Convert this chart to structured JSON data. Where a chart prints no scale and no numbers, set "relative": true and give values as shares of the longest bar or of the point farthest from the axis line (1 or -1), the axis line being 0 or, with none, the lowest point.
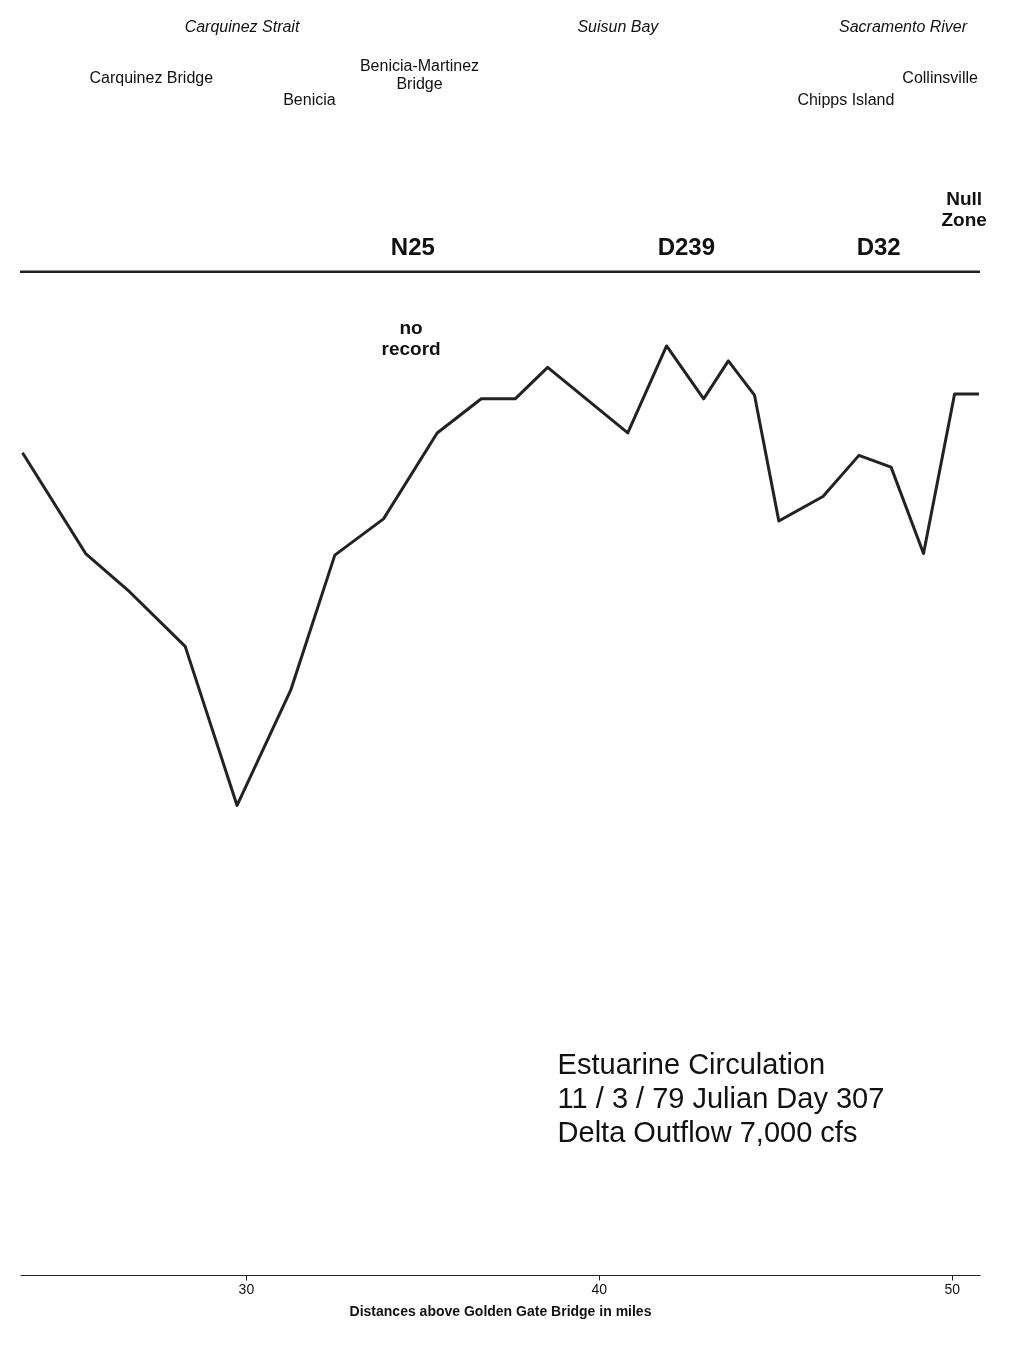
{
  "chart_data": {
    "type": "line",
    "relative": true,
    "title": "Estuarine Circulation",
    "subtitle": "11 / 3 / 79 Julian Day 307\nDelta Outflow 7,000 cfs",
    "xlabel": "Distances above Golden Gate Bridge in miles",
    "xlim": [
      23.6,
      50.8
    ],
    "xticks": [
      30,
      40,
      50
    ],
    "x": [
      23.67,
      25.46,
      26.71,
      28.28,
      29.75,
      31.27,
      32.52,
      33.9,
      35.42,
      36.67,
      37.63,
      38.55,
      40.82,
      41.92,
      42.97,
      43.67,
      44.41,
      45.1,
      46.35,
      47.37,
      48.28,
      49.2,
      50.08,
      50.77
    ],
    "series": [
      {
        "color": "#222222",
        "values": [
          -0.339,
          -0.528,
          -0.6,
          -0.702,
          -1,
          -0.784,
          -0.531,
          -0.463,
          -0.302,
          -0.238,
          -0.238,
          -0.179,
          -0.302,
          -0.139,
          -0.238,
          -0.167,
          -0.231,
          -0.467,
          -0.421,
          -0.344,
          -0.366,
          -0.528,
          -0.229,
          -0.229
        ]
      }
    ],
    "annotations": [
      "Carquinez Strait",
      "Suisun Bay",
      "Sacramento River",
      "Carquinez Bridge",
      "Benicia-Martinez\nBridge",
      "Benicia",
      "Chipps Island",
      "Collinsville",
      "Null\nZone",
      "N25",
      "D239",
      "D32",
      "no\nrecord"
    ]
  }
}
